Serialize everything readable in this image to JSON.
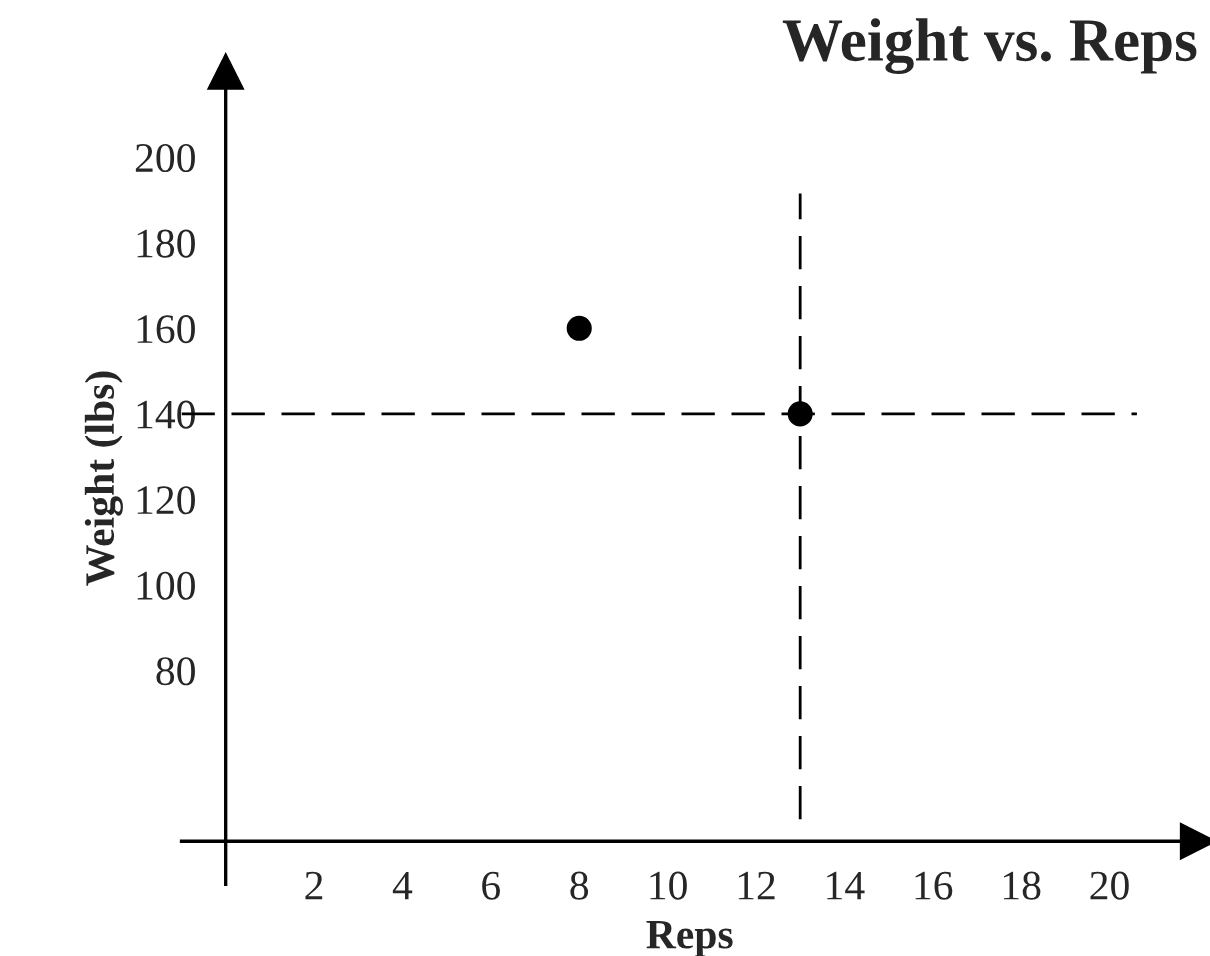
{
  "chart_data": {
    "type": "scatter",
    "title": "Weight vs. Reps",
    "xlabel": "Reps",
    "ylabel": "Weight (lbs)",
    "x": [
      8,
      13
    ],
    "values": [
      160,
      140
    ],
    "color": "#000000",
    "marker": "circle",
    "xlim": [
      -1,
      22
    ],
    "ylim": [
      30,
      220
    ],
    "xticks": [
      {
        "value": 0,
        "label": null
      },
      2,
      4,
      6,
      8,
      10,
      12,
      14,
      16,
      18,
      20
    ],
    "yticks": [
      80,
      100,
      120,
      140,
      160,
      180,
      200
    ],
    "ref_lines": [
      {
        "axis": "y",
        "value": 140,
        "line_style": "dashed",
        "color": "#000000"
      },
      {
        "axis": "x",
        "value": 13,
        "line_style": "dashed",
        "color": "#000000"
      }
    ],
    "grid": false,
    "legend": false
  }
}
